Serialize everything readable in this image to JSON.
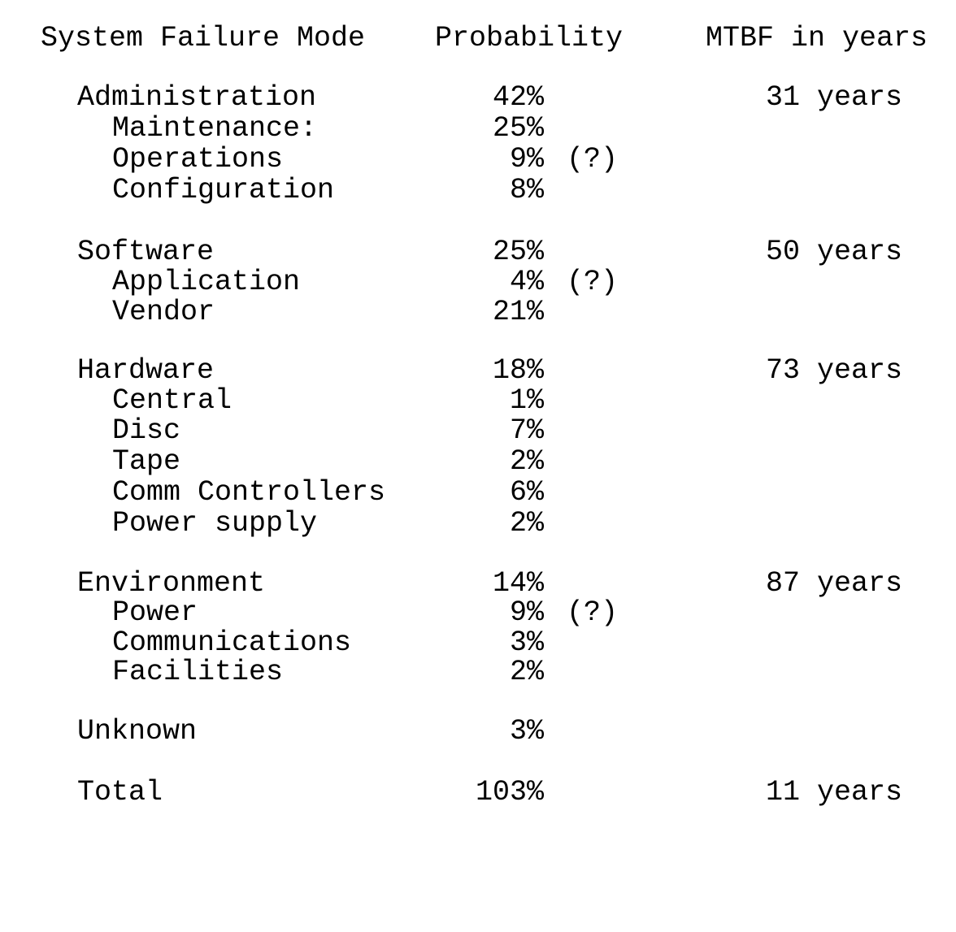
{
  "header": {
    "mode": "System Failure Mode",
    "probability": "Probability",
    "mtbf": "MTBF in years"
  },
  "rows": [
    {
      "label": "Administration",
      "pct": "42%",
      "note": "",
      "mtbf": "31 years"
    },
    {
      "label": "Maintenance:",
      "pct": "25%",
      "note": "",
      "mtbf": ""
    },
    {
      "label": "Operations",
      "pct": "9%",
      "note": "(?)",
      "mtbf": ""
    },
    {
      "label": "Configuration",
      "pct": "8%",
      "note": "",
      "mtbf": ""
    },
    {
      "label": "Software",
      "pct": "25%",
      "note": "",
      "mtbf": "50 years"
    },
    {
      "label": "Application",
      "pct": "4%",
      "note": "(?)",
      "mtbf": ""
    },
    {
      "label": "Vendor",
      "pct": "21%",
      "note": "",
      "mtbf": ""
    },
    {
      "label": "Hardware",
      "pct": "18%",
      "note": "",
      "mtbf": "73 years"
    },
    {
      "label": "Central",
      "pct": "1%",
      "note": "",
      "mtbf": ""
    },
    {
      "label": "Disc",
      "pct": "7%",
      "note": "",
      "mtbf": ""
    },
    {
      "label": "Tape",
      "pct": "2%",
      "note": "",
      "mtbf": ""
    },
    {
      "label": "Comm Controllers",
      "pct": "6%",
      "note": "",
      "mtbf": ""
    },
    {
      "label": "Power supply",
      "pct": "2%",
      "note": "",
      "mtbf": ""
    },
    {
      "label": "Environment",
      "pct": "14%",
      "note": "",
      "mtbf": "87 years"
    },
    {
      "label": "Power",
      "pct": "9%",
      "note": "(?)",
      "mtbf": ""
    },
    {
      "label": "Communications",
      "pct": "3%",
      "note": "",
      "mtbf": ""
    },
    {
      "label": "Facilities",
      "pct": "2%",
      "note": "",
      "mtbf": ""
    },
    {
      "label": "Unknown",
      "pct": "3%",
      "note": "",
      "mtbf": ""
    },
    {
      "label": "Total",
      "pct": "103%",
      "note": "",
      "mtbf": "11 years"
    }
  ]
}
